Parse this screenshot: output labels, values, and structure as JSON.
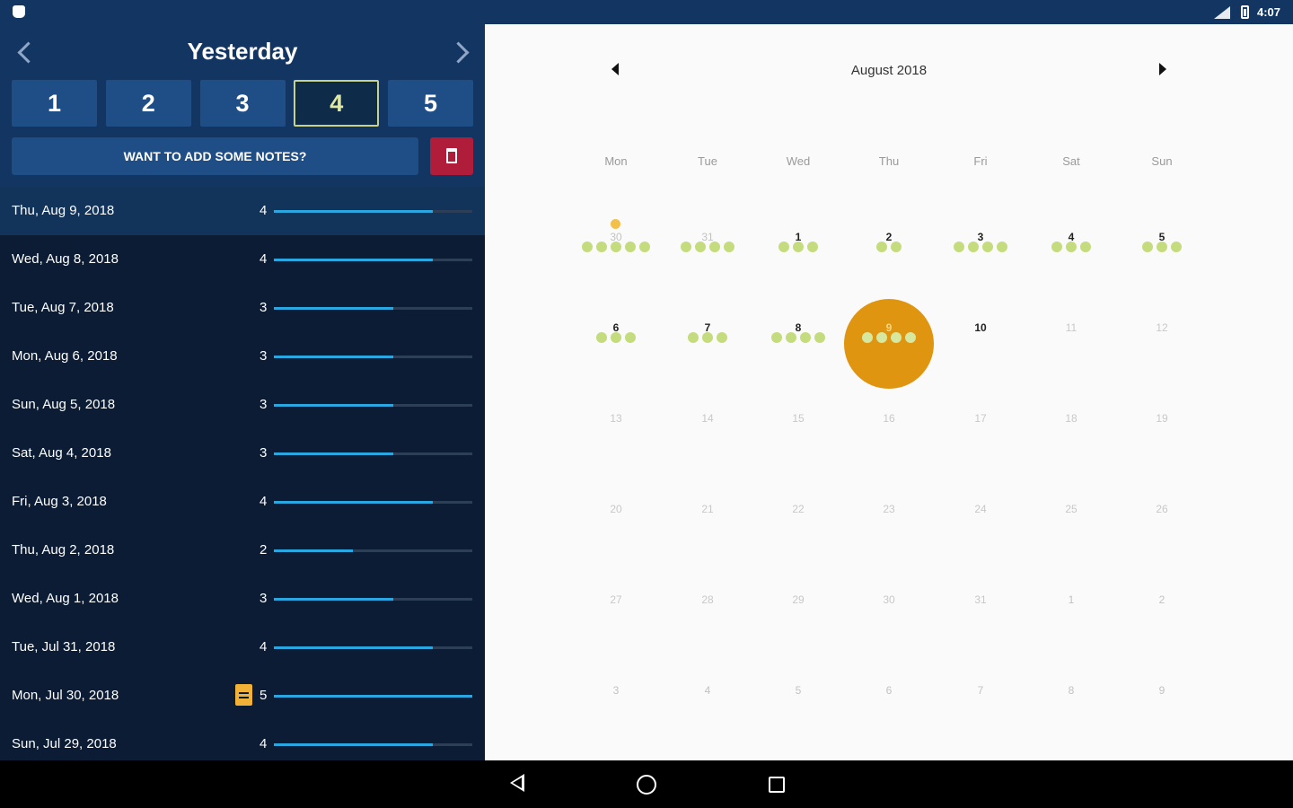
{
  "status_bar": {
    "time": "4:07",
    "icons": [
      "app-icon",
      "signal-icon",
      "battery-icon"
    ]
  },
  "left": {
    "title": "Yesterday",
    "ratings": [
      {
        "label": "1",
        "selected": false
      },
      {
        "label": "2",
        "selected": false
      },
      {
        "label": "3",
        "selected": false
      },
      {
        "label": "4",
        "selected": true
      },
      {
        "label": "5",
        "selected": false
      }
    ],
    "notes_button": "WANT TO ADD SOME NOTES?",
    "delete_icon": "trash-icon",
    "entries": [
      {
        "date": "Thu, Aug 9, 2018",
        "score": "4",
        "active": true,
        "note": false
      },
      {
        "date": "Wed, Aug 8, 2018",
        "score": "4",
        "active": false,
        "note": false
      },
      {
        "date": "Tue, Aug 7, 2018",
        "score": "3",
        "active": false,
        "note": false
      },
      {
        "date": "Mon, Aug 6, 2018",
        "score": "3",
        "active": false,
        "note": false
      },
      {
        "date": "Sun, Aug 5, 2018",
        "score": "3",
        "active": false,
        "note": false
      },
      {
        "date": "Sat, Aug 4, 2018",
        "score": "3",
        "active": false,
        "note": false
      },
      {
        "date": "Fri, Aug 3, 2018",
        "score": "4",
        "active": false,
        "note": false
      },
      {
        "date": "Thu, Aug 2, 2018",
        "score": "2",
        "active": false,
        "note": false
      },
      {
        "date": "Wed, Aug 1, 2018",
        "score": "3",
        "active": false,
        "note": false
      },
      {
        "date": "Tue, Jul 31, 2018",
        "score": "4",
        "active": false,
        "note": false
      },
      {
        "date": "Mon, Jul 30, 2018",
        "score": "5",
        "active": false,
        "note": true
      },
      {
        "date": "Sun, Jul 29, 2018",
        "score": "4",
        "active": false,
        "note": false
      }
    ],
    "colors": {
      "bar": "#2aa6e0",
      "header": "#123562",
      "list": "#0b1c34",
      "delete": "#b01d3a",
      "selected_outline": "#c9d28a"
    }
  },
  "calendar": {
    "month_title": "August 2018",
    "weekdays": [
      "Mon",
      "Tue",
      "Wed",
      "Thu",
      "Fri",
      "Sat",
      "Sun"
    ],
    "weeks": [
      [
        {
          "d": "30",
          "kind": "other-month",
          "dots": 5,
          "note": true
        },
        {
          "d": "31",
          "kind": "other-month",
          "dots": 4
        },
        {
          "d": "1",
          "kind": "in-month",
          "dots": 3
        },
        {
          "d": "2",
          "kind": "in-month",
          "dots": 2
        },
        {
          "d": "3",
          "kind": "in-month",
          "dots": 4
        },
        {
          "d": "4",
          "kind": "in-month",
          "dots": 3
        },
        {
          "d": "5",
          "kind": "in-month",
          "dots": 3
        }
      ],
      [
        {
          "d": "6",
          "kind": "in-month",
          "dots": 3
        },
        {
          "d": "7",
          "kind": "in-month",
          "dots": 3
        },
        {
          "d": "8",
          "kind": "in-month",
          "dots": 4
        },
        {
          "d": "9",
          "kind": "in-month",
          "dots": 4,
          "selected": true
        },
        {
          "d": "10",
          "kind": "in-month",
          "dots": 0
        },
        {
          "d": "11",
          "kind": "future",
          "dots": 0
        },
        {
          "d": "12",
          "kind": "future",
          "dots": 0
        }
      ],
      [
        {
          "d": "13",
          "kind": "future",
          "dots": 0
        },
        {
          "d": "14",
          "kind": "future",
          "dots": 0
        },
        {
          "d": "15",
          "kind": "future",
          "dots": 0
        },
        {
          "d": "16",
          "kind": "future",
          "dots": 0
        },
        {
          "d": "17",
          "kind": "future",
          "dots": 0
        },
        {
          "d": "18",
          "kind": "future",
          "dots": 0
        },
        {
          "d": "19",
          "kind": "future",
          "dots": 0
        }
      ],
      [
        {
          "d": "20",
          "kind": "future",
          "dots": 0
        },
        {
          "d": "21",
          "kind": "future",
          "dots": 0
        },
        {
          "d": "22",
          "kind": "future",
          "dots": 0
        },
        {
          "d": "23",
          "kind": "future",
          "dots": 0
        },
        {
          "d": "24",
          "kind": "future",
          "dots": 0
        },
        {
          "d": "25",
          "kind": "future",
          "dots": 0
        },
        {
          "d": "26",
          "kind": "future",
          "dots": 0
        }
      ],
      [
        {
          "d": "27",
          "kind": "future",
          "dots": 0
        },
        {
          "d": "28",
          "kind": "future",
          "dots": 0
        },
        {
          "d": "29",
          "kind": "future",
          "dots": 0
        },
        {
          "d": "30",
          "kind": "future",
          "dots": 0
        },
        {
          "d": "31",
          "kind": "future",
          "dots": 0
        },
        {
          "d": "1",
          "kind": "other-month",
          "dots": 0
        },
        {
          "d": "2",
          "kind": "other-month",
          "dots": 0
        }
      ],
      [
        {
          "d": "3",
          "kind": "other-month",
          "dots": 0
        },
        {
          "d": "4",
          "kind": "other-month",
          "dots": 0
        },
        {
          "d": "5",
          "kind": "other-month",
          "dots": 0
        },
        {
          "d": "6",
          "kind": "other-month",
          "dots": 0
        },
        {
          "d": "7",
          "kind": "other-month",
          "dots": 0
        },
        {
          "d": "8",
          "kind": "other-month",
          "dots": 0
        },
        {
          "d": "9",
          "kind": "other-month",
          "dots": 0
        }
      ]
    ],
    "colors": {
      "dot": "#c5dc7e",
      "selected": "#e09510",
      "note_dot": "#f3c04a"
    }
  },
  "nav_bar": {
    "icons": [
      "back-icon",
      "home-icon",
      "recents-icon"
    ]
  }
}
